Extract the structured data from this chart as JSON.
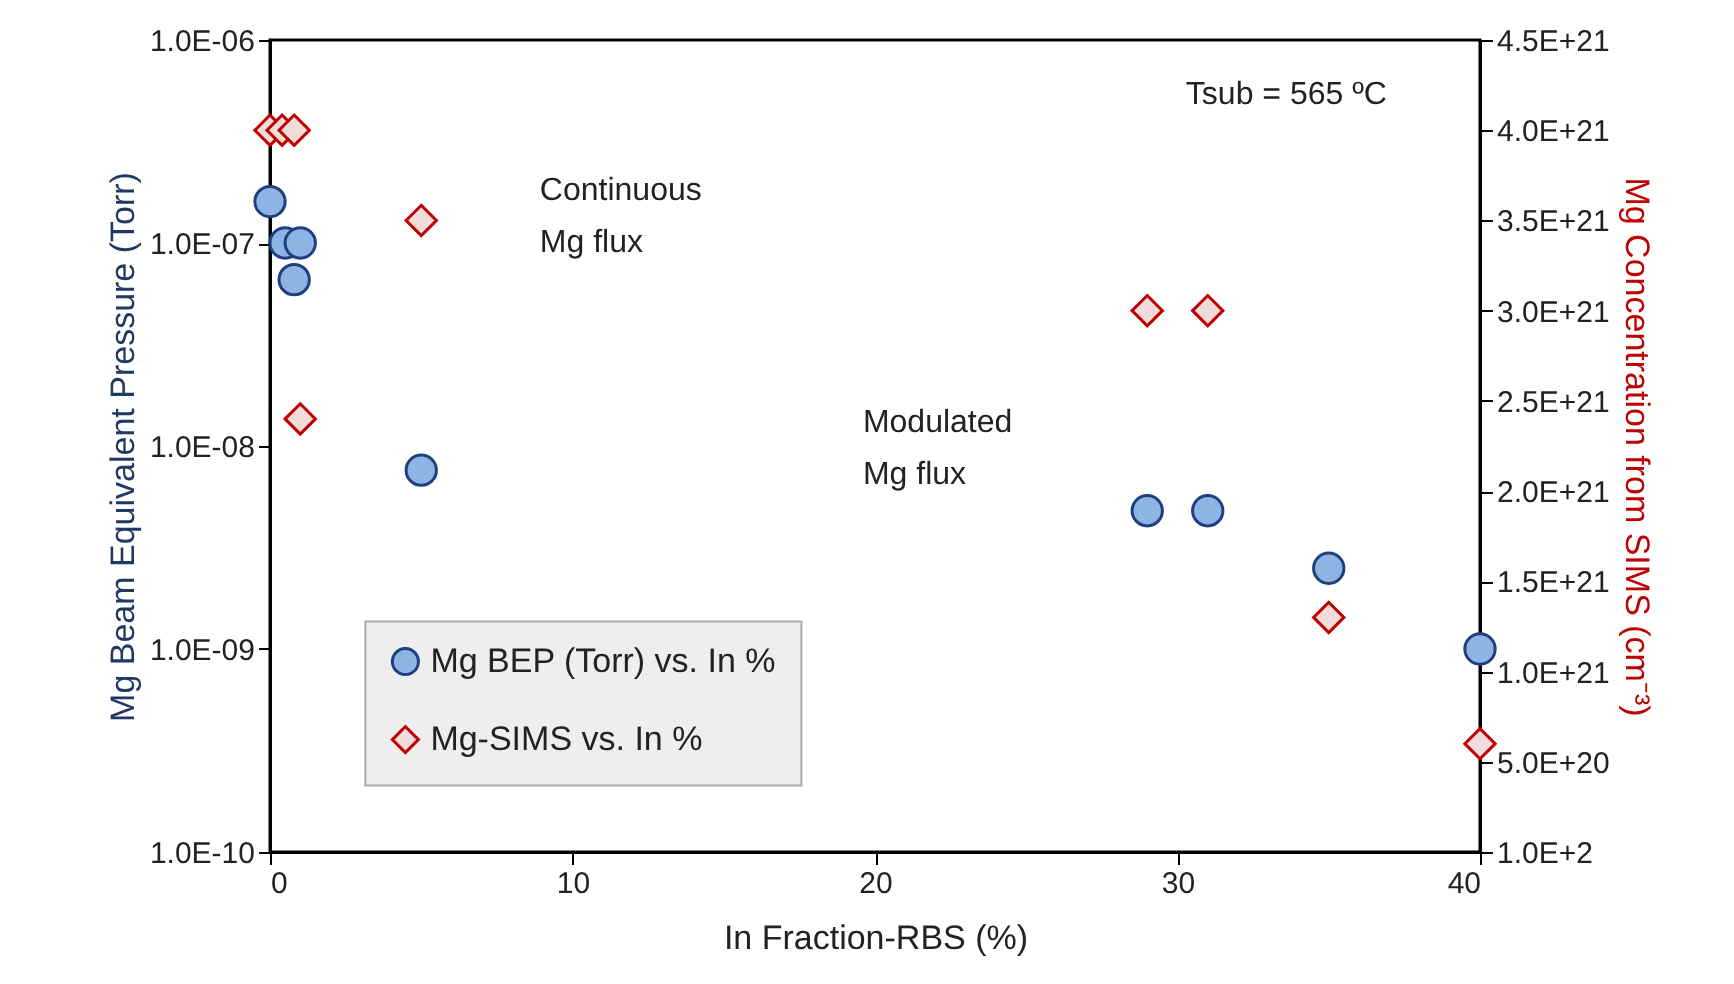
{
  "chart_data": {
    "type": "scatter",
    "xlabel": "In Fraction-RBS (%)",
    "ylabel": "Mg Beam Equivalent Pressure (Torr)",
    "y2label": "Mg Concentration from SIMS (cm⁻³)",
    "xlim": [
      0,
      40
    ],
    "xticks": [
      0,
      10,
      20,
      30,
      40
    ],
    "ylim": [
      1e-10,
      1e-06
    ],
    "yticks": [
      {
        "value": 1e-10,
        "label": "1.0E-10"
      },
      {
        "value": 1e-09,
        "label": "1.0E-09"
      },
      {
        "value": 1e-08,
        "label": "1.0E-08"
      },
      {
        "value": 1e-07,
        "label": "1.0E-07"
      },
      {
        "value": 1e-06,
        "label": "1.0E-06"
      }
    ],
    "y2lim": [
      100,
      4.5e+21
    ],
    "y2ticks": [
      {
        "value": 100,
        "label": "1.0E+2"
      },
      {
        "value": 5e+20,
        "label": "5.0E+20"
      },
      {
        "value": 1e+21,
        "label": "1.0E+21"
      },
      {
        "value": 1.5e+21,
        "label": "1.5E+21"
      },
      {
        "value": 2e+21,
        "label": "2.0E+21"
      },
      {
        "value": 2.5e+21,
        "label": "2.5E+21"
      },
      {
        "value": 3e+21,
        "label": "3.0E+21"
      },
      {
        "value": 3.5e+21,
        "label": "3.5E+21"
      },
      {
        "value": 4e+21,
        "label": "4.0E+21"
      },
      {
        "value": 4.5e+21,
        "label": "4.5E+21"
      }
    ],
    "log": "y",
    "grid": false,
    "legend": "bottom left",
    "annotations": [
      "Tsub = 565 ºC",
      "Continuous Mg flux",
      "Modulated Mg flux"
    ],
    "series": [
      {
        "name": "Mg BEP (Torr) vs. In %",
        "color": "#8eb4e3",
        "marker": "circle",
        "x": [
          0,
          0.5,
          1,
          0.8,
          5,
          29,
          31,
          35,
          40
        ],
        "values": [
          1.6e-07,
          1e-07,
          1e-07,
          6.6e-08,
          7.6e-09,
          4.8e-09,
          4.8e-09,
          2.5e-09,
          1e-09
        ]
      },
      {
        "name": "Mg-SIMS vs. In %",
        "color": "#c00000",
        "marker": "diamond",
        "axis": "y2",
        "x": [
          0,
          0.4,
          0.8,
          1,
          5,
          29,
          31,
          35,
          40
        ],
        "values": [
          4e+21,
          4e+21,
          4e+21,
          2.4e+21,
          3.5e+21,
          3e+21,
          3e+21,
          1.3e+21,
          6e+20
        ]
      }
    ]
  }
}
